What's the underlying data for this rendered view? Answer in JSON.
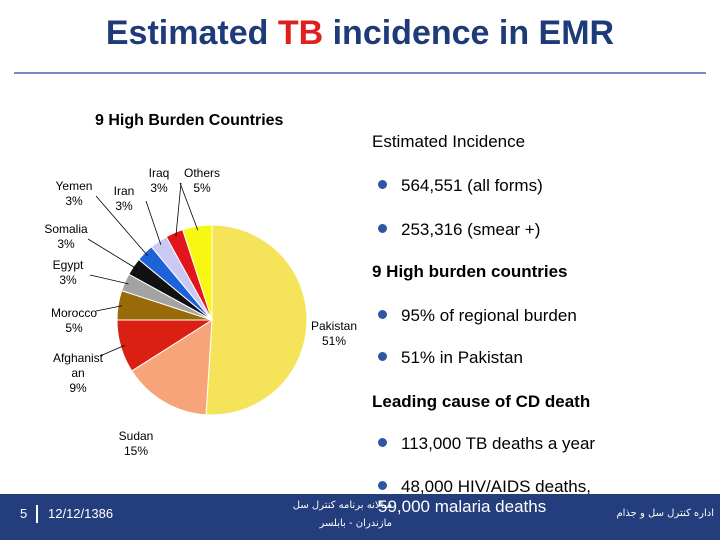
{
  "slide": {
    "title_part1": "Estimated ",
    "title_accent": "TB",
    "title_part2": " incidence in EMR"
  },
  "chart_data": {
    "type": "pie",
    "title": "9 High Burden Countries",
    "slices": [
      {
        "label": "Pakistan",
        "value": 51,
        "pct": "51%",
        "color": "#f5e45a"
      },
      {
        "label": "Sudan",
        "value": 15,
        "pct": "15%",
        "color": "#f8a47a"
      },
      {
        "label": "Afghanistan",
        "label_lines": [
          "Afghanist",
          "an"
        ],
        "value": 9,
        "pct": "9%",
        "color": "#d92012"
      },
      {
        "label": "Morocco",
        "value": 5,
        "pct": "5%",
        "color": "#996a08"
      },
      {
        "label": "Egypt",
        "value": 3,
        "pct": "3%",
        "color": "#a3a3a3"
      },
      {
        "label": "Somalia",
        "value": 3,
        "pct": "3%",
        "color": "#111111"
      },
      {
        "label": "Yemen",
        "value": 3,
        "pct": "3%",
        "color": "#1d62d8"
      },
      {
        "label": "Iran",
        "value": 3,
        "pct": "3%",
        "color": "#c9c9f4"
      },
      {
        "label": "Iraq",
        "value": 3,
        "pct": "3%",
        "color": "#e2141c"
      },
      {
        "label": "Others",
        "value": 5,
        "pct": "5%",
        "color": "#f7f712"
      }
    ]
  },
  "panel": {
    "heading1": "Estimated Incidence",
    "b1": "564,551 (all forms)",
    "b2": "253,316 (smear +)",
    "heading2": "9 High burden countries",
    "b3": "95% of regional burden",
    "b4": "51% in Pakistan",
    "heading3": "Leading cause of CD death",
    "b5": "113,000 TB deaths a year",
    "b6": "48,000 HIV/AIDS deaths,",
    "b7": "59,000 malaria deaths"
  },
  "footer": {
    "page_number": "5",
    "date": "12/12/1386",
    "mid_line1": "سالانه برنامه کنترل سل",
    "mid_line2": "مازندران - بابلسر",
    "right": "اداره کنترل سل و جذام"
  }
}
